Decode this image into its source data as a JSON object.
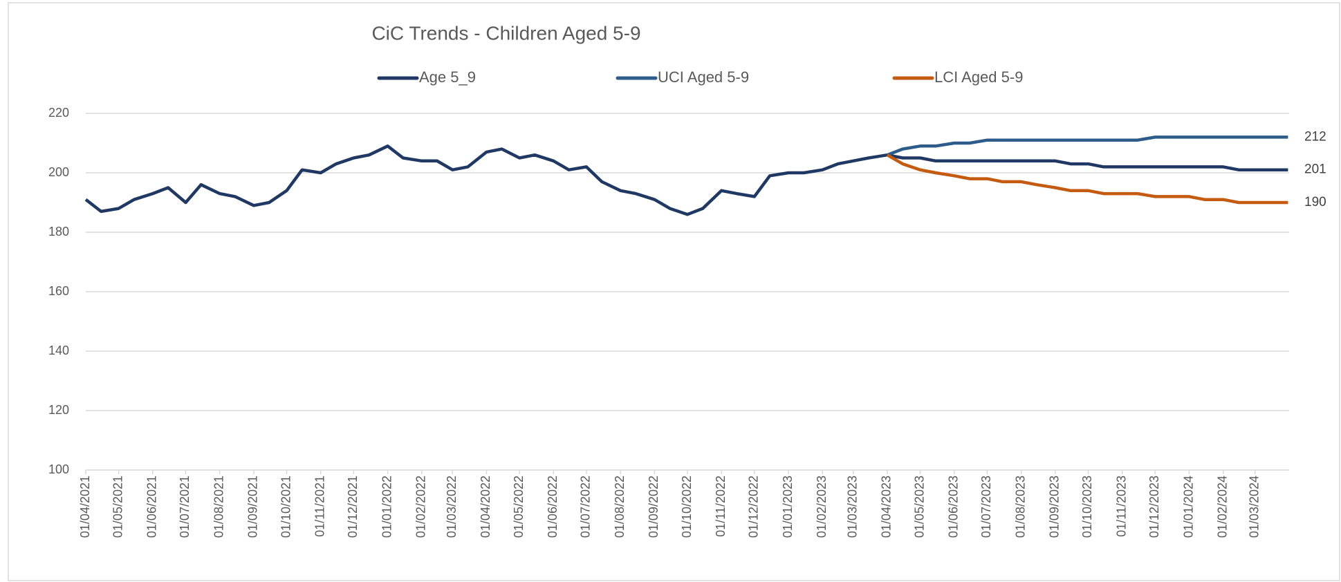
{
  "chart_data": {
    "type": "line",
    "title": "CiC Trends - Children Aged 5-9",
    "x": [
      "01/04/2021",
      "15/04/2021",
      "01/05/2021",
      "15/05/2021",
      "01/06/2021",
      "15/06/2021",
      "01/07/2021",
      "15/07/2021",
      "01/08/2021",
      "15/08/2021",
      "01/09/2021",
      "15/09/2021",
      "01/10/2021",
      "15/10/2021",
      "01/11/2021",
      "15/11/2021",
      "01/12/2021",
      "15/12/2021",
      "01/01/2022",
      "15/01/2022",
      "01/02/2022",
      "15/02/2022",
      "01/03/2022",
      "15/03/2022",
      "01/04/2022",
      "15/04/2022",
      "01/05/2022",
      "15/05/2022",
      "01/06/2022",
      "15/06/2022",
      "01/07/2022",
      "15/07/2022",
      "01/08/2022",
      "15/08/2022",
      "01/09/2022",
      "15/09/2022",
      "01/10/2022",
      "15/10/2022",
      "01/11/2022",
      "15/11/2022",
      "01/12/2022",
      "15/12/2022",
      "01/01/2023",
      "15/01/2023",
      "01/02/2023",
      "15/02/2023",
      "01/03/2023",
      "15/03/2023",
      "01/04/2023",
      "15/04/2023",
      "01/05/2023",
      "15/05/2023",
      "01/06/2023",
      "15/06/2023",
      "01/07/2023",
      "15/07/2023",
      "01/08/2023",
      "15/08/2023",
      "01/09/2023",
      "15/09/2023",
      "01/10/2023",
      "15/10/2023",
      "01/11/2023",
      "15/11/2023",
      "01/12/2023",
      "15/12/2023",
      "01/01/2024",
      "15/01/2024",
      "01/02/2024",
      "15/02/2024",
      "01/03/2024",
      "15/03/2024",
      "31/03/2024"
    ],
    "series": [
      {
        "name": "Age 5_9",
        "color": "#203864",
        "values": [
          191,
          187,
          188,
          191,
          193,
          195,
          190,
          196,
          193,
          192,
          189,
          190,
          194,
          201,
          200,
          203,
          205,
          206,
          209,
          205,
          204,
          204,
          201,
          202,
          207,
          208,
          205,
          206,
          204,
          201,
          202,
          197,
          194,
          193,
          191,
          188,
          186,
          188,
          194,
          193,
          192,
          199,
          200,
          200,
          201,
          203,
          204,
          205,
          206,
          205,
          205,
          204,
          204,
          204,
          204,
          204,
          204,
          204,
          204,
          203,
          203,
          202,
          202,
          202,
          202,
          202,
          202,
          202,
          202,
          201,
          201,
          201,
          201
        ]
      },
      {
        "name": "UCI Aged 5-9",
        "color": "#2e5c8a",
        "values": [
          null,
          null,
          null,
          null,
          null,
          null,
          null,
          null,
          null,
          null,
          null,
          null,
          null,
          null,
          null,
          null,
          null,
          null,
          null,
          null,
          null,
          null,
          null,
          null,
          null,
          null,
          null,
          null,
          null,
          null,
          null,
          null,
          null,
          null,
          null,
          null,
          null,
          null,
          null,
          null,
          null,
          null,
          null,
          null,
          null,
          null,
          null,
          null,
          206,
          208,
          209,
          209,
          210,
          210,
          211,
          211,
          211,
          211,
          211,
          211,
          211,
          211,
          211,
          211,
          212,
          212,
          212,
          212,
          212,
          212,
          212,
          212,
          212
        ]
      },
      {
        "name": "LCI Aged 5-9",
        "color": "#c55a11",
        "values": [
          null,
          null,
          null,
          null,
          null,
          null,
          null,
          null,
          null,
          null,
          null,
          null,
          null,
          null,
          null,
          null,
          null,
          null,
          null,
          null,
          null,
          null,
          null,
          null,
          null,
          null,
          null,
          null,
          null,
          null,
          null,
          null,
          null,
          null,
          null,
          null,
          null,
          null,
          null,
          null,
          null,
          null,
          null,
          null,
          null,
          null,
          null,
          null,
          206,
          203,
          201,
          200,
          199,
          198,
          198,
          197,
          197,
          196,
          195,
          194,
          194,
          193,
          193,
          193,
          192,
          192,
          192,
          191,
          191,
          190,
          190,
          190,
          190
        ]
      }
    ],
    "xlim": [
      "01/04/2021",
      "01/04/2024"
    ],
    "xticks": [
      "01/04/2021",
      "01/05/2021",
      "01/06/2021",
      "01/07/2021",
      "01/08/2021",
      "01/09/2021",
      "01/10/2021",
      "01/11/2021",
      "01/12/2021",
      "01/01/2022",
      "01/02/2022",
      "01/03/2022",
      "01/04/2022",
      "01/05/2022",
      "01/06/2022",
      "01/07/2022",
      "01/08/2022",
      "01/09/2022",
      "01/10/2022",
      "01/11/2022",
      "01/12/2022",
      "01/01/2023",
      "01/02/2023",
      "01/03/2023",
      "01/04/2023",
      "01/05/2023",
      "01/06/2023",
      "01/07/2023",
      "01/08/2023",
      "01/09/2023",
      "01/10/2023",
      "01/11/2023",
      "01/12/2023",
      "01/01/2024",
      "01/02/2024",
      "01/03/2024"
    ],
    "ylim": [
      100,
      220
    ],
    "yticks": [
      100,
      120,
      140,
      160,
      180,
      200,
      220
    ],
    "grid": true,
    "legend": "top"
  }
}
